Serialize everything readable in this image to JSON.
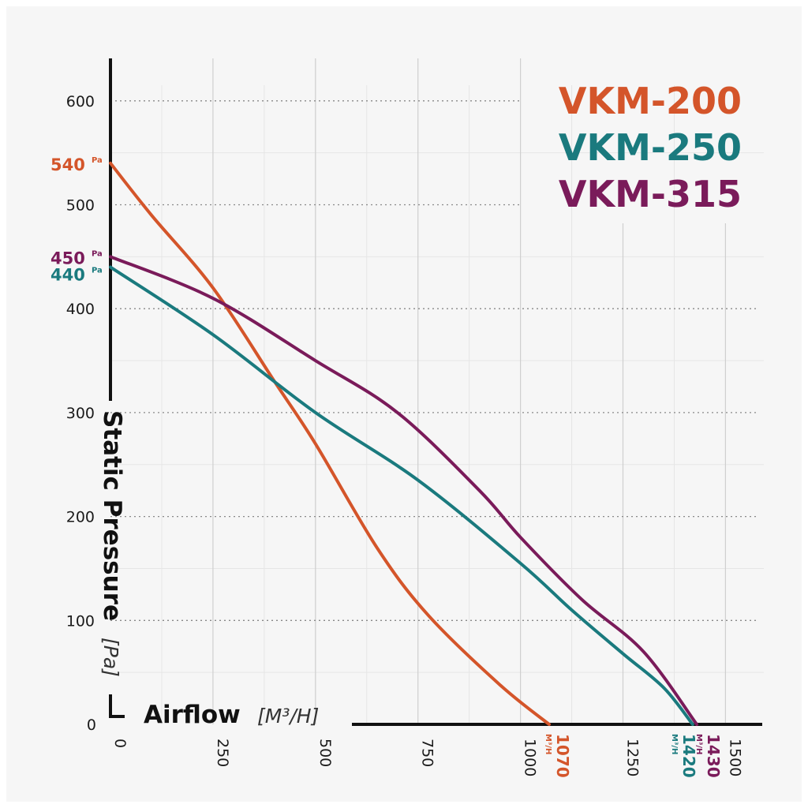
{
  "chart_data": {
    "type": "line",
    "xlabel": "Airflow",
    "xunit": "[M³/H]",
    "ylabel": "Static Pressure",
    "yunit": "[Pa]",
    "xlim": [
      0,
      1600
    ],
    "ylim": [
      0,
      600
    ],
    "x_ticks": [
      0,
      250,
      500,
      750,
      1000,
      1250,
      1500
    ],
    "y_ticks": [
      0,
      100,
      200,
      300,
      400,
      500,
      600
    ],
    "grid": true,
    "legend_position": "top-right",
    "series": [
      {
        "name": "VKM-200",
        "color": "#d4552a",
        "start_label": "540",
        "start_unit": "Pa",
        "end_label": "1070",
        "end_unit": "M³/H",
        "points": [
          [
            0,
            540
          ],
          [
            100,
            490
          ],
          [
            250,
            420
          ],
          [
            400,
            330
          ],
          [
            500,
            270
          ],
          [
            650,
            170
          ],
          [
            775,
            105
          ],
          [
            950,
            38
          ],
          [
            1070,
            0
          ]
        ]
      },
      {
        "name": "VKM-250",
        "color": "#1a7a7e",
        "start_label": "440",
        "start_unit": "Pa",
        "end_label": "1420",
        "end_unit": "M³/H",
        "points": [
          [
            0,
            440
          ],
          [
            250,
            375
          ],
          [
            500,
            300
          ],
          [
            750,
            235
          ],
          [
            1000,
            155
          ],
          [
            1125,
            110
          ],
          [
            1250,
            68
          ],
          [
            1350,
            35
          ],
          [
            1420,
            0
          ]
        ]
      },
      {
        "name": "VKM-315",
        "color": "#7a1b5a",
        "start_label": "450",
        "start_unit": "Pa",
        "end_label": "1430",
        "end_unit": "M³/H",
        "points": [
          [
            0,
            450
          ],
          [
            250,
            410
          ],
          [
            500,
            350
          ],
          [
            700,
            300
          ],
          [
            900,
            225
          ],
          [
            1000,
            180
          ],
          [
            1150,
            120
          ],
          [
            1300,
            70
          ],
          [
            1430,
            0
          ]
        ]
      }
    ]
  }
}
